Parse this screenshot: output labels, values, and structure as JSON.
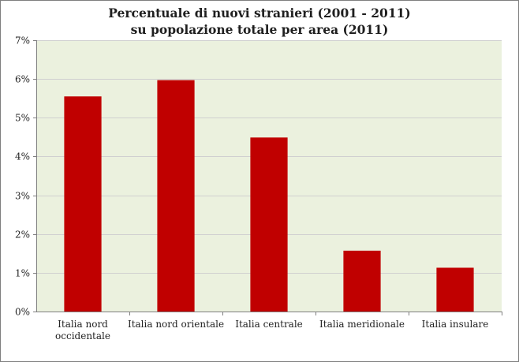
{
  "chart_data": {
    "type": "bar",
    "title": "Percentuale di nuovi stranieri (2001 - 2011)",
    "subtitle": "su popolazione totale per area (2011)",
    "categories": [
      [
        "Italia nord",
        "occidentale"
      ],
      [
        "Italia nord orientale"
      ],
      [
        "Italia centrale"
      ],
      [
        "Italia meridionale"
      ],
      [
        "Italia insulare"
      ]
    ],
    "values": [
      5.55,
      5.97,
      4.49,
      1.57,
      1.13
    ],
    "value_unit": "%",
    "xlabel": "",
    "ylabel": "",
    "ylim": [
      0,
      7
    ],
    "yticks": [
      0,
      1,
      2,
      3,
      4,
      5,
      6,
      7
    ],
    "grid": true,
    "legend": "none",
    "colors": {
      "bar": "#c00000",
      "plot_background": "#ebf1de",
      "gridline": "#d0d0d0",
      "axis": "#7f7f7f"
    }
  }
}
